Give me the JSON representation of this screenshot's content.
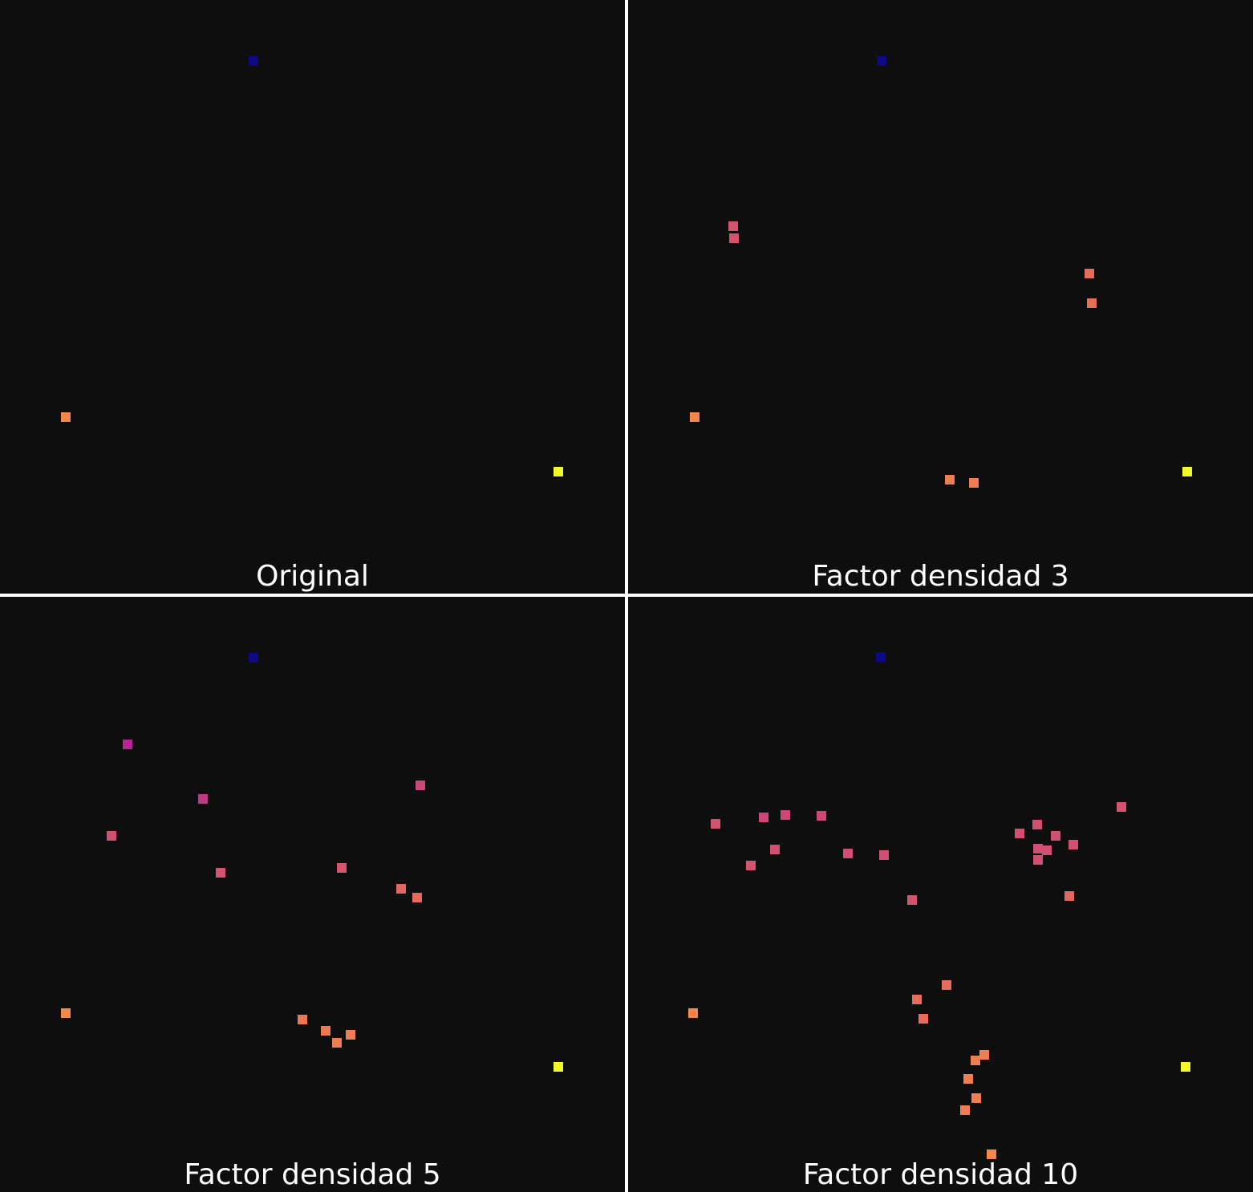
{
  "chart_data": [
    {
      "type": "scatter",
      "title": "Original",
      "xlim": [
        0,
        779
      ],
      "ylim": [
        0,
        740
      ],
      "points": [
        {
          "x": 316,
          "y": 76,
          "color": "#0d0887"
        },
        {
          "x": 82,
          "y": 520,
          "color": "#f48849"
        },
        {
          "x": 696,
          "y": 588,
          "color": "#f0f921"
        }
      ]
    },
    {
      "type": "scatter",
      "title": "Factor densidad 3",
      "xlim": [
        0,
        779
      ],
      "ylim": [
        0,
        740
      ],
      "points": [
        {
          "x": 316,
          "y": 76,
          "color": "#0d0887"
        },
        {
          "x": 131,
          "y": 282,
          "color": "#d5536f"
        },
        {
          "x": 132,
          "y": 297,
          "color": "#d5536f"
        },
        {
          "x": 575,
          "y": 341,
          "color": "#e66c5c"
        },
        {
          "x": 578,
          "y": 378,
          "color": "#e8705a"
        },
        {
          "x": 83,
          "y": 520,
          "color": "#f48849"
        },
        {
          "x": 401,
          "y": 598,
          "color": "#f07f4f"
        },
        {
          "x": 431,
          "y": 602,
          "color": "#ef7d51"
        },
        {
          "x": 697,
          "y": 588,
          "color": "#f0f921"
        }
      ]
    },
    {
      "type": "scatter",
      "title": "Factor densidad 5",
      "xlim": [
        0,
        779
      ],
      "ylim": [
        0,
        742
      ],
      "points": [
        {
          "x": 316,
          "y": 76,
          "color": "#0d0887"
        },
        {
          "x": 159,
          "y": 184,
          "color": "#b12a90"
        },
        {
          "x": 253,
          "y": 252,
          "color": "#c03a83"
        },
        {
          "x": 524,
          "y": 235,
          "color": "#cc4778"
        },
        {
          "x": 139,
          "y": 298,
          "color": "#d24f71"
        },
        {
          "x": 275,
          "y": 344,
          "color": "#d5536f"
        },
        {
          "x": 426,
          "y": 338,
          "color": "#d6556d"
        },
        {
          "x": 500,
          "y": 364,
          "color": "#e26660"
        },
        {
          "x": 520,
          "y": 375,
          "color": "#e4695e"
        },
        {
          "x": 82,
          "y": 519,
          "color": "#f48849"
        },
        {
          "x": 377,
          "y": 527,
          "color": "#ec7853"
        },
        {
          "x": 406,
          "y": 541,
          "color": "#ed7953"
        },
        {
          "x": 420,
          "y": 556,
          "color": "#ef7d51"
        },
        {
          "x": 437,
          "y": 546,
          "color": "#ef7d51"
        },
        {
          "x": 696,
          "y": 586,
          "color": "#f0f921"
        }
      ]
    },
    {
      "type": "scatter",
      "title": "Factor densidad 10",
      "xlim": [
        0,
        779
      ],
      "ylim": [
        0,
        742
      ],
      "points": [
        {
          "x": 315,
          "y": 75,
          "color": "#0d0887"
        },
        {
          "x": 109,
          "y": 283,
          "color": "#d5536f"
        },
        {
          "x": 169,
          "y": 275,
          "color": "#cc4778"
        },
        {
          "x": 196,
          "y": 272,
          "color": "#cc4778"
        },
        {
          "x": 241,
          "y": 273,
          "color": "#cc4778"
        },
        {
          "x": 153,
          "y": 335,
          "color": "#d5536f"
        },
        {
          "x": 183,
          "y": 315,
          "color": "#d24f71"
        },
        {
          "x": 274,
          "y": 320,
          "color": "#d24f71"
        },
        {
          "x": 319,
          "y": 322,
          "color": "#d24f71"
        },
        {
          "x": 354,
          "y": 378,
          "color": "#d5536f"
        },
        {
          "x": 488,
          "y": 295,
          "color": "#d24f71"
        },
        {
          "x": 510,
          "y": 284,
          "color": "#d24f71"
        },
        {
          "x": 533,
          "y": 298,
          "color": "#d24f71"
        },
        {
          "x": 511,
          "y": 314,
          "color": "#d24f71"
        },
        {
          "x": 522,
          "y": 316,
          "color": "#d24f71"
        },
        {
          "x": 511,
          "y": 328,
          "color": "#d24f71"
        },
        {
          "x": 555,
          "y": 309,
          "color": "#d24f71"
        },
        {
          "x": 615,
          "y": 262,
          "color": "#d5536f"
        },
        {
          "x": 550,
          "y": 373,
          "color": "#e26660"
        },
        {
          "x": 397,
          "y": 484,
          "color": "#e66c5c"
        },
        {
          "x": 360,
          "y": 502,
          "color": "#e66c5c"
        },
        {
          "x": 368,
          "y": 526,
          "color": "#e66c5c"
        },
        {
          "x": 81,
          "y": 519,
          "color": "#f48849"
        },
        {
          "x": 444,
          "y": 571,
          "color": "#f07f4f"
        },
        {
          "x": 433,
          "y": 578,
          "color": "#f07f4f"
        },
        {
          "x": 424,
          "y": 601,
          "color": "#f07f4f"
        },
        {
          "x": 434,
          "y": 625,
          "color": "#f07f4f"
        },
        {
          "x": 420,
          "y": 640,
          "color": "#f07f4f"
        },
        {
          "x": 453,
          "y": 695,
          "color": "#f48849"
        },
        {
          "x": 695,
          "y": 586,
          "color": "#f0f921"
        }
      ]
    }
  ]
}
